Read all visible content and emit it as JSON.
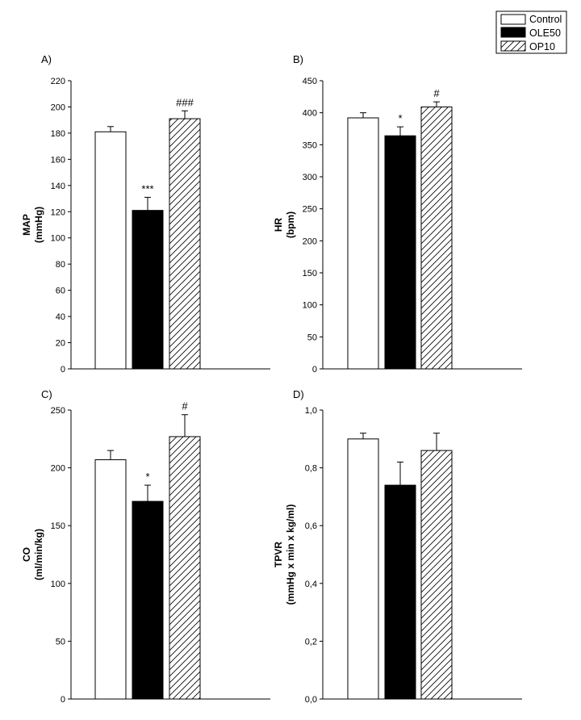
{
  "legend": {
    "items": [
      {
        "label": "Control",
        "fill": "white"
      },
      {
        "label": "OLE50",
        "fill": "black"
      },
      {
        "label": "OP10",
        "fill": "hatch"
      }
    ]
  },
  "colors": {
    "axis": "#000000",
    "bar_black": "#000000",
    "bar_white": "#ffffff"
  },
  "chart_data": [
    {
      "type": "bar",
      "panel": "A)",
      "categories": [
        "Control",
        "OLE50",
        "OP10"
      ],
      "values": [
        181,
        121,
        191
      ],
      "errors": [
        4,
        10,
        6
      ],
      "annotations": [
        "",
        "***",
        "###"
      ],
      "ylabel_line1": "MAP",
      "ylabel_line2": "(mmHg)",
      "ylim": [
        0,
        220
      ],
      "yticks": [
        "0",
        "20",
        "40",
        "60",
        "80",
        "100",
        "120",
        "140",
        "160",
        "180",
        "200",
        "220"
      ],
      "tick_values": [
        0,
        20,
        40,
        60,
        80,
        100,
        120,
        140,
        160,
        180,
        200,
        220
      ]
    },
    {
      "type": "bar",
      "panel": "B)",
      "categories": [
        "Control",
        "OLE50",
        "OP10"
      ],
      "values": [
        392,
        364,
        409
      ],
      "errors": [
        8,
        14,
        8
      ],
      "annotations": [
        "",
        "*",
        "#"
      ],
      "ylabel_line1": "HR",
      "ylabel_line2": "(bpm)",
      "ylim": [
        0,
        450
      ],
      "yticks": [
        "0",
        "50",
        "100",
        "150",
        "200",
        "250",
        "300",
        "350",
        "400",
        "450"
      ],
      "tick_values": [
        0,
        50,
        100,
        150,
        200,
        250,
        300,
        350,
        400,
        450
      ]
    },
    {
      "type": "bar",
      "panel": "C)",
      "categories": [
        "Control",
        "OLE50",
        "OP10"
      ],
      "values": [
        207,
        171,
        227
      ],
      "errors": [
        8,
        14,
        19
      ],
      "annotations": [
        "",
        "*",
        "#"
      ],
      "ylabel_line1": "CO",
      "ylabel_line2": "(ml/min/kg)",
      "ylim": [
        0,
        250
      ],
      "yticks": [
        "0",
        "50",
        "100",
        "150",
        "200",
        "250"
      ],
      "tick_values": [
        0,
        50,
        100,
        150,
        200,
        250
      ]
    },
    {
      "type": "bar",
      "panel": "D)",
      "categories": [
        "Control",
        "OLE50",
        "OP10"
      ],
      "values": [
        0.9,
        0.74,
        0.86
      ],
      "errors": [
        0.02,
        0.08,
        0.06
      ],
      "annotations": [
        "",
        "",
        ""
      ],
      "ylabel_line1": "TPVR",
      "ylabel_line2": "(mmHg x min x kg/ml)",
      "ylim": [
        0,
        1.0
      ],
      "yticks": [
        "0,0",
        "0,2",
        "0,4",
        "0,6",
        "0,8",
        "1,0"
      ],
      "tick_values": [
        0,
        0.2,
        0.4,
        0.6,
        0.8,
        1.0
      ]
    }
  ]
}
